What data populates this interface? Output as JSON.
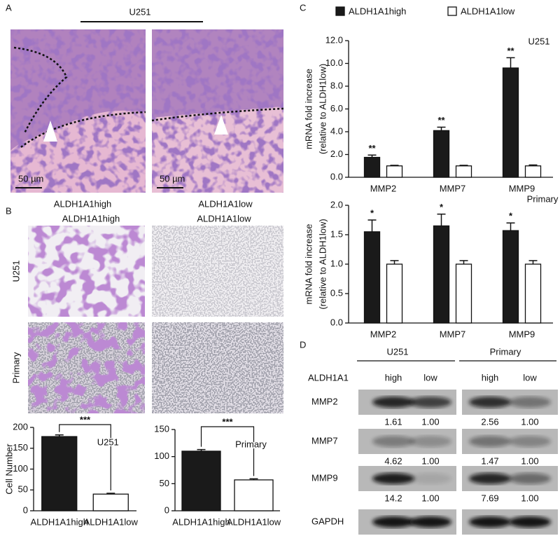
{
  "panel_a": {
    "label": "A",
    "cell_line": "U251",
    "scale_bars": [
      "50 µm",
      "50 µm"
    ],
    "captions": [
      "ALDH1A1high",
      "ALDH1A1low"
    ]
  },
  "panel_b": {
    "label": "B",
    "column_headers": [
      "ALDH1A1high",
      "ALDH1A1low"
    ],
    "row_labels": [
      "U251",
      "Primary"
    ]
  },
  "panel_c": {
    "label": "C"
  },
  "panel_d": {
    "label": "D",
    "groups": [
      "U251",
      "Primary"
    ],
    "row_header": "ALDH1A1",
    "columns": [
      "high",
      "low",
      "high",
      "low"
    ],
    "rows": [
      {
        "protein": "MMP2",
        "ratios": [
          "1.61",
          "1.00",
          "2.56",
          "1.00"
        ]
      },
      {
        "protein": "MMP7",
        "ratios": [
          "4.62",
          "1.00",
          "1.47",
          "1.00"
        ]
      },
      {
        "protein": "MMP9",
        "ratios": [
          "14.2",
          "1.00",
          "7.69",
          "1.00"
        ]
      },
      {
        "protein": "GAPDH"
      }
    ]
  },
  "chart_data": [
    {
      "type": "bar",
      "categories": [
        "ALDH1A1high",
        "ALDH1A1low"
      ],
      "values": [
        178,
        40
      ],
      "errors": [
        4,
        2
      ],
      "colors": [
        "#1a1a1a",
        "#ffffff"
      ],
      "ylim": [
        0,
        200
      ],
      "yticks": [
        0,
        50,
        100,
        150,
        200
      ],
      "y_label": "Cell Number",
      "significance": "***",
      "annotation": "U251"
    },
    {
      "type": "bar",
      "categories": [
        "ALDH1A1high",
        "ALDH1A1low"
      ],
      "values": [
        110,
        57
      ],
      "errors": [
        3,
        2
      ],
      "colors": [
        "#1a1a1a",
        "#ffffff"
      ],
      "ylim": [
        0,
        150
      ],
      "yticks": [
        0,
        50,
        100,
        150
      ],
      "significance": "***",
      "annotation": "Primary"
    },
    {
      "type": "bar",
      "title": "U251",
      "categories": [
        "MMP2",
        "MMP7",
        "MMP9"
      ],
      "series": [
        {
          "name": "ALDH1A1high",
          "color": "#1a1a1a",
          "values": [
            1.75,
            4.1,
            9.6
          ],
          "errors": [
            0.2,
            0.3,
            0.9
          ],
          "annotations": [
            "**",
            "**",
            "**"
          ]
        },
        {
          "name": "ALDH1A1low",
          "color": "#ffffff",
          "values": [
            1.0,
            1.0,
            1.0
          ],
          "errors": [
            0.05,
            0.05,
            0.08
          ]
        }
      ],
      "ylim": [
        0,
        12
      ],
      "yticks": [
        {
          "value": 0,
          "label": "0.0"
        },
        {
          "value": 2,
          "label": "2.0"
        },
        {
          "value": 4,
          "label": "4.0"
        },
        {
          "value": 6,
          "label": "6.0"
        },
        {
          "value": 8,
          "label": "8.0"
        },
        {
          "value": 10,
          "label": "10.0"
        },
        {
          "value": 12,
          "label": "12.0"
        }
      ],
      "y_label": [
        "mRNA fold increase",
        "(relative to ALDH1low)"
      ]
    },
    {
      "type": "bar",
      "title": "Primary",
      "categories": [
        "MMP2",
        "MMP7",
        "MMP9"
      ],
      "series": [
        {
          "color": "#1a1a1a",
          "values": [
            1.55,
            1.65,
            1.57
          ],
          "errors": [
            0.2,
            0.2,
            0.13
          ],
          "annotations": [
            "*",
            "*",
            "*"
          ]
        },
        {
          "color": "#ffffff",
          "values": [
            1.0,
            1.0,
            1.0
          ],
          "errors": [
            0.06,
            0.06,
            0.06
          ]
        }
      ],
      "ylim": [
        0,
        2
      ],
      "yticks": [
        {
          "value": 0,
          "label": "0.0"
        },
        {
          "value": 0.5,
          "label": "0.5"
        },
        {
          "value": 1,
          "label": "1.0"
        },
        {
          "value": 1.5,
          "label": "1.5"
        },
        {
          "value": 2,
          "label": "2.0"
        }
      ],
      "y_label": [
        "mRNA fold increase",
        "(relative to ALDH1low)"
      ]
    }
  ]
}
